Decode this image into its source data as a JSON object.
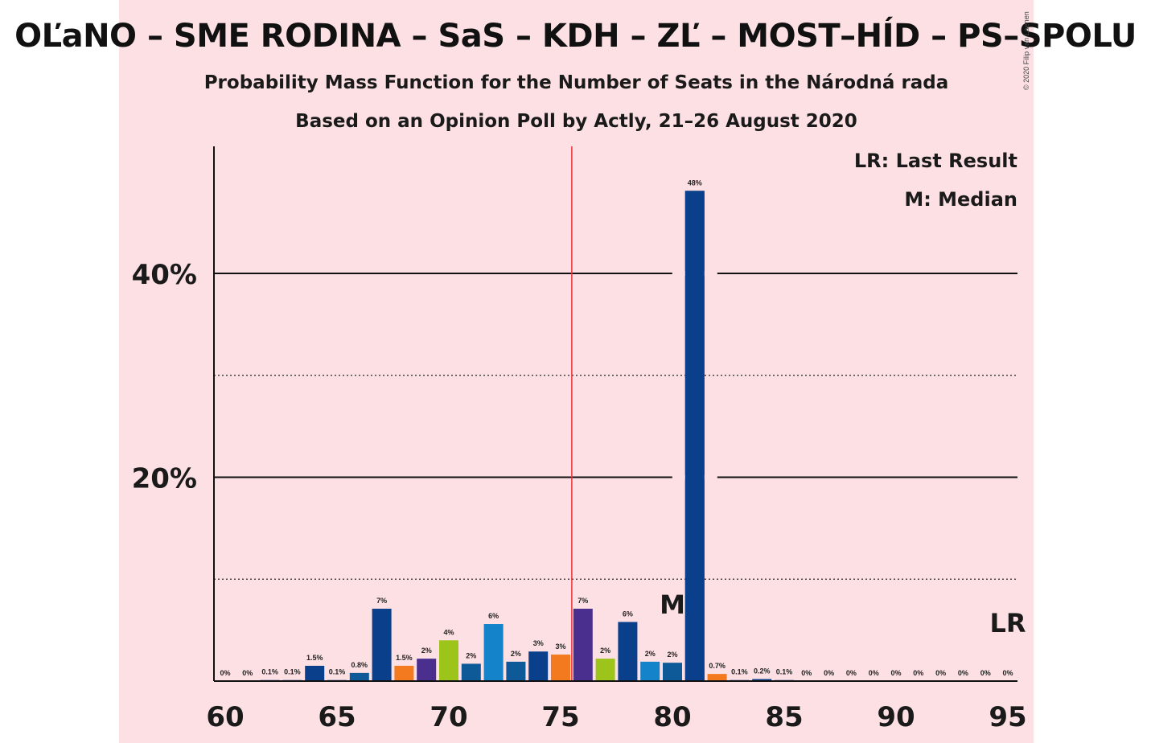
{
  "title": "OĽaNO – SME RODINA – SaS – KDH – ZĽ – MOST–HÍD – PS–SPOLU",
  "subtitle_1": "Probability Mass Function for the Number of Seats in the Národná rada",
  "subtitle_2": "Based on an Opinion Poll by Actly, 21–26 August 2020",
  "copyright": "© 2020 Filip van Laenen",
  "legend": {
    "lr": "LR: Last Result",
    "m": "M: Median"
  },
  "colors": {
    "background_panel": "#fde0e3",
    "majority_line": "#e8313d",
    "party_colors": [
      "#0a3f8c",
      "#f47a20",
      "#4a2f8f",
      "#9dc41a",
      "#1483c9",
      "#0e5a99"
    ]
  },
  "chart_data": {
    "type": "bar",
    "x": [
      60,
      61,
      62,
      63,
      64,
      65,
      66,
      67,
      68,
      69,
      70,
      71,
      72,
      73,
      74,
      75,
      76,
      77,
      78,
      79,
      80,
      81,
      82,
      83,
      84,
      85,
      86,
      87,
      88,
      89,
      90,
      91,
      92,
      93,
      94,
      95
    ],
    "values": [
      0,
      0,
      0.1,
      0.1,
      1.5,
      0.1,
      0.8,
      7,
      1.5,
      2,
      4,
      2,
      6,
      2,
      3,
      3,
      7,
      2,
      6,
      2,
      2,
      48,
      0.7,
      0.1,
      0.2,
      0.1,
      0,
      0,
      0,
      0,
      0,
      0,
      0,
      0,
      0,
      0
    ],
    "labels": [
      "0%",
      "0%",
      "0.1%",
      "0.1%",
      "1.5%",
      "0.1%",
      "0.8%",
      "7%",
      "1.5%",
      "2%",
      "4%",
      "2%",
      "6%",
      "2%",
      "3%",
      "3%",
      "7%",
      "2%",
      "6%",
      "2%",
      "2%",
      "48%",
      "0.7%",
      "0.1%",
      "0.2%",
      "0.1%",
      "0%",
      "0%",
      "0%",
      "0%",
      "0%",
      "0%",
      "0%",
      "0%",
      "0%",
      "0%"
    ],
    "bar_color_index": [
      0,
      0,
      0,
      0,
      0,
      0,
      5,
      0,
      1,
      2,
      3,
      5,
      4,
      5,
      0,
      1,
      2,
      3,
      0,
      4,
      5,
      0,
      1,
      0,
      0,
      0,
      0,
      0,
      0,
      0,
      0,
      0,
      0,
      0,
      0,
      0
    ],
    "y_percent_plotted": [
      0,
      0,
      0.1,
      0.1,
      1.5,
      0.1,
      0.8,
      7.1,
      1.5,
      2.2,
      4.0,
      1.7,
      5.6,
      1.9,
      2.9,
      2.6,
      7.1,
      2.2,
      5.8,
      1.9,
      1.8,
      48.1,
      0.7,
      0.1,
      0.2,
      0.1,
      0,
      0,
      0,
      0,
      0,
      0,
      0,
      0,
      0,
      0
    ],
    "xlim": [
      60,
      95
    ],
    "x_ticks": [
      60,
      65,
      70,
      75,
      80,
      85,
      90,
      95
    ],
    "x_tick_labels": [
      "60",
      "65",
      "70",
      "75",
      "80",
      "85",
      "90",
      "95"
    ],
    "ylim": [
      0,
      52
    ],
    "y_ticks": [
      20,
      40
    ],
    "y_tick_labels": [
      "20%",
      "40%"
    ],
    "y_dotted_gridlines": [
      10,
      30
    ],
    "majority_threshold": 75.5,
    "median": 80,
    "median_label": "M",
    "last_result": 95,
    "last_result_label": "LR",
    "grid": true,
    "legend_position": "top-right"
  }
}
